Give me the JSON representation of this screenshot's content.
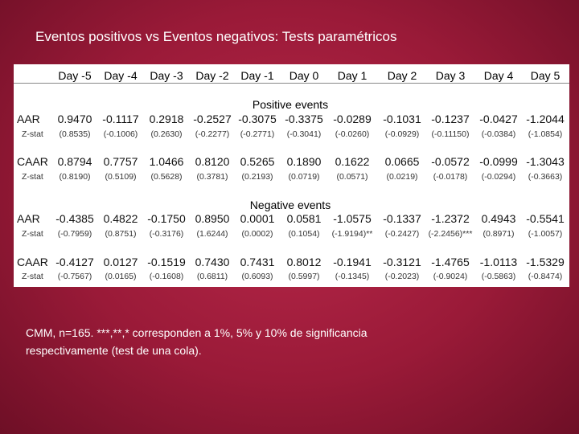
{
  "title": "Eventos positivos vs Eventos negativos: Tests paramétricos",
  "table": {
    "columns": [
      "Day -5",
      "Day -4",
      "Day -3",
      "Day -2",
      "Day -1",
      "Day 0",
      "Day 1",
      "Day 2",
      "Day 3",
      "Day 4",
      "Day 5"
    ],
    "sections": [
      {
        "heading": "Positive events",
        "rows": [
          {
            "label": "AAR",
            "values": [
              "0.9470",
              "-0.1117",
              "0.2918",
              "-0.2527",
              "-0.3075",
              "-0.3375",
              "-0.0289",
              "-0.1031",
              "-0.1237",
              "-0.0427",
              "-1.2044"
            ]
          },
          {
            "label": "Z-stat",
            "values": [
              "(0.8535)",
              "(-0.1006)",
              "(0.2630)",
              "(-0.2277)",
              "(-0.2771)",
              "(-0.3041)",
              "(-0.0260)",
              "(-0.0929)",
              "(-0.11150)",
              "(-0.0384)",
              "(-1.0854)"
            ]
          },
          {
            "label": "CAAR",
            "values": [
              "0.8794",
              "0.7757",
              "1.0466",
              "0.8120",
              "0.5265",
              "0.1890",
              "0.1622",
              "0.0665",
              "-0.0572",
              "-0.0999",
              "-1.3043"
            ]
          },
          {
            "label": "Z-stat",
            "values": [
              "(0.8190)",
              "(0.5109)",
              "(0.5628)",
              "(0.3781)",
              "(0.2193)",
              "(0.0719)",
              "(0.0571)",
              "(0.0219)",
              "(-0.0178)",
              "(-0.0294)",
              "(-0.3663)"
            ]
          }
        ]
      },
      {
        "heading": "Negative events",
        "rows": [
          {
            "label": "AAR",
            "values": [
              "-0.4385",
              "0.4822",
              "-0.1750",
              "0.8950",
              "0.0001",
              "0.0581",
              "-1.0575",
              "-0.1337",
              "-1.2372",
              "0.4943",
              "-0.5541"
            ]
          },
          {
            "label": "Z-stat",
            "values": [
              "(-0.7959)",
              "(0.8751)",
              "(-0.3176)",
              "(1.6244)",
              "(0.0002)",
              "(0.1054)",
              "(-1.9194)**",
              "(-0.2427)",
              "(-2.2456)***",
              "(0.8971)",
              "(-1.0057)"
            ]
          },
          {
            "label": "CAAR",
            "values": [
              "-0.4127",
              "0.0127",
              "-0.1519",
              "0.7430",
              "0.7431",
              "0.8012",
              "-0.1941",
              "-0.3121",
              "-1.4765",
              "-1.0113",
              "-1.5329"
            ]
          },
          {
            "label": "Z-stat",
            "values": [
              "(-0.7567)",
              "(0.0165)",
              "(-0.1608)",
              "(0.6811)",
              "(0.6093)",
              "(0.5997)",
              "(-0.1345)",
              "(-0.2023)",
              "(-0.9024)",
              "(-0.5863)",
              "(-0.8474)"
            ]
          }
        ]
      }
    ]
  },
  "note": [
    "CMM, n=165. ***,**,* corresponden a 1%, 5% y 10% de significancia",
    "respectivamente (test de una cola)."
  ]
}
